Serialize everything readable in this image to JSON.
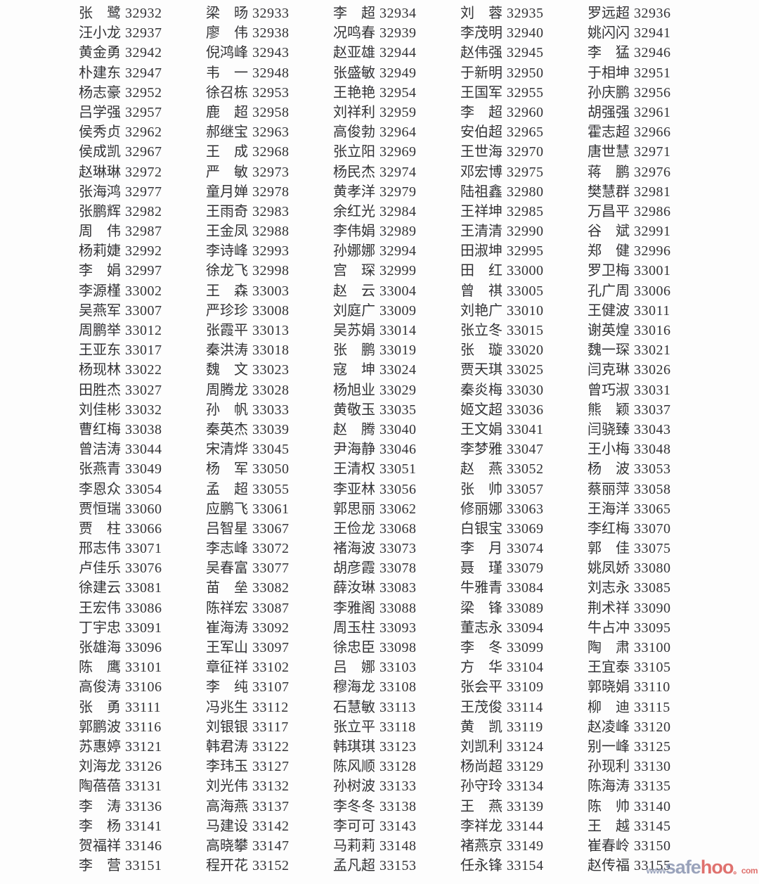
{
  "colors": {
    "text": "#333336",
    "background": "#fdfdfd",
    "watermark_blue": "#8590ad",
    "watermark_red": "#d9534f"
  },
  "watermark": {
    "www": "www",
    "safe": "safe",
    "hoo": "hoo",
    "com_suffix": "。com"
  },
  "roster": {
    "columns": 5,
    "number_range": "32932-33155",
    "entries": [
      [
        "张鹭",
        "32932"
      ],
      [
        "梁旸",
        "32933"
      ],
      [
        "李超",
        "32934"
      ],
      [
        "刘蓉",
        "32935"
      ],
      [
        "罗远超",
        "32936"
      ],
      [
        "汪小龙",
        "32937"
      ],
      [
        "廖伟",
        "32938"
      ],
      [
        "况鸣春",
        "32939"
      ],
      [
        "李茂明",
        "32940"
      ],
      [
        "姚闪闪",
        "32941"
      ],
      [
        "黄金勇",
        "32942"
      ],
      [
        "倪鸿峰",
        "32943"
      ],
      [
        "赵亚雄",
        "32944"
      ],
      [
        "赵伟强",
        "32945"
      ],
      [
        "李猛",
        "32946"
      ],
      [
        "朴建东",
        "32947"
      ],
      [
        "韦一",
        "32948"
      ],
      [
        "张盛敏",
        "32949"
      ],
      [
        "于新明",
        "32950"
      ],
      [
        "于相坤",
        "32951"
      ],
      [
        "杨志豪",
        "32952"
      ],
      [
        "徐召栋",
        "32953"
      ],
      [
        "王艳艳",
        "32954"
      ],
      [
        "王国军",
        "32955"
      ],
      [
        "孙庆鹏",
        "32956"
      ],
      [
        "吕学强",
        "32957"
      ],
      [
        "鹿超",
        "32958"
      ],
      [
        "刘祥利",
        "32959"
      ],
      [
        "李超",
        "32960"
      ],
      [
        "胡强强",
        "32961"
      ],
      [
        "侯秀贞",
        "32962"
      ],
      [
        "郝继宝",
        "32963"
      ],
      [
        "高俊勃",
        "32964"
      ],
      [
        "安伯超",
        "32965"
      ],
      [
        "霍志超",
        "32966"
      ],
      [
        "侯成凯",
        "32967"
      ],
      [
        "王成",
        "32968"
      ],
      [
        "张立阳",
        "32969"
      ],
      [
        "王世海",
        "32970"
      ],
      [
        "唐世慧",
        "32971"
      ],
      [
        "赵琳琳",
        "32972"
      ],
      [
        "严敏",
        "32973"
      ],
      [
        "杨民杰",
        "32974"
      ],
      [
        "邓宏博",
        "32975"
      ],
      [
        "蒋鹏",
        "32976"
      ],
      [
        "张海鸿",
        "32977"
      ],
      [
        "童月婵",
        "32978"
      ],
      [
        "黄孝洋",
        "32979"
      ],
      [
        "陆祖鑫",
        "32980"
      ],
      [
        "樊慧群",
        "32981"
      ],
      [
        "张鹏辉",
        "32982"
      ],
      [
        "王雨奇",
        "32983"
      ],
      [
        "余红光",
        "32984"
      ],
      [
        "王祥坤",
        "32985"
      ],
      [
        "万昌平",
        "32986"
      ],
      [
        "周伟",
        "32987"
      ],
      [
        "王金凤",
        "32988"
      ],
      [
        "李伟娟",
        "32989"
      ],
      [
        "王清清",
        "32990"
      ],
      [
        "谷斌",
        "32991"
      ],
      [
        "杨莉婕",
        "32992"
      ],
      [
        "李诗峰",
        "32993"
      ],
      [
        "孙娜娜",
        "32994"
      ],
      [
        "田淑坤",
        "32995"
      ],
      [
        "郑健",
        "32996"
      ],
      [
        "李娟",
        "32997"
      ],
      [
        "徐龙飞",
        "32998"
      ],
      [
        "宫琛",
        "32999"
      ],
      [
        "田红",
        "33000"
      ],
      [
        "罗卫梅",
        "33001"
      ],
      [
        "李源槿",
        "33002"
      ],
      [
        "王森",
        "33003"
      ],
      [
        "赵云",
        "33004"
      ],
      [
        "曾祺",
        "33005"
      ],
      [
        "孔广周",
        "33006"
      ],
      [
        "吴燕军",
        "33007"
      ],
      [
        "严珍珍",
        "33008"
      ],
      [
        "刘庭广",
        "33009"
      ],
      [
        "刘艳广",
        "33010"
      ],
      [
        "王健波",
        "33011"
      ],
      [
        "周鹏举",
        "33012"
      ],
      [
        "张霞平",
        "33013"
      ],
      [
        "吴苏娟",
        "33014"
      ],
      [
        "张立冬",
        "33015"
      ],
      [
        "谢英煌",
        "33016"
      ],
      [
        "王亚东",
        "33017"
      ],
      [
        "秦洪涛",
        "33018"
      ],
      [
        "张鹏",
        "33019"
      ],
      [
        "张璇",
        "33020"
      ],
      [
        "魏一琛",
        "33021"
      ],
      [
        "杨现林",
        "33022"
      ],
      [
        "魏文",
        "33023"
      ],
      [
        "寇坤",
        "33024"
      ],
      [
        "贾天琪",
        "33025"
      ],
      [
        "闫克琳",
        "33026"
      ],
      [
        "田胜杰",
        "33027"
      ],
      [
        "周腾龙",
        "33028"
      ],
      [
        "杨旭业",
        "33029"
      ],
      [
        "秦炎梅",
        "33030"
      ],
      [
        "曾巧淑",
        "33031"
      ],
      [
        "刘佳彬",
        "33032"
      ],
      [
        "孙帆",
        "33033"
      ],
      [
        "黄敬玉",
        "33035"
      ],
      [
        "姬文超",
        "33036"
      ],
      [
        "熊颖",
        "33037"
      ],
      [
        "曹红梅",
        "33038"
      ],
      [
        "秦英杰",
        "33039"
      ],
      [
        "赵腾",
        "33040"
      ],
      [
        "王文娟",
        "33041"
      ],
      [
        "闫骁臻",
        "33043"
      ],
      [
        "曾洁涛",
        "33044"
      ],
      [
        "宋清烨",
        "33045"
      ],
      [
        "尹海静",
        "33046"
      ],
      [
        "李梦雅",
        "33047"
      ],
      [
        "王小梅",
        "33048"
      ],
      [
        "张燕青",
        "33049"
      ],
      [
        "杨军",
        "33050"
      ],
      [
        "王清权",
        "33051"
      ],
      [
        "赵燕",
        "33052"
      ],
      [
        "杨波",
        "33053"
      ],
      [
        "李恩众",
        "33054"
      ],
      [
        "孟超",
        "33055"
      ],
      [
        "李亚林",
        "33056"
      ],
      [
        "张帅",
        "33057"
      ],
      [
        "蔡丽萍",
        "33058"
      ],
      [
        "贾恒瑞",
        "33060"
      ],
      [
        "应鹏飞",
        "33061"
      ],
      [
        "郭思丽",
        "33062"
      ],
      [
        "修丽娜",
        "33063"
      ],
      [
        "王海洋",
        "33065"
      ],
      [
        "贾柱",
        "33066"
      ],
      [
        "吕智星",
        "33067"
      ],
      [
        "王俭龙",
        "33068"
      ],
      [
        "白银宝",
        "33069"
      ],
      [
        "李红梅",
        "33070"
      ],
      [
        "邢志伟",
        "33071"
      ],
      [
        "李志峰",
        "33072"
      ],
      [
        "褚海波",
        "33073"
      ],
      [
        "李月",
        "33074"
      ],
      [
        "郭佳",
        "33075"
      ],
      [
        "卢佳乐",
        "33076"
      ],
      [
        "吴春富",
        "33077"
      ],
      [
        "胡彦霞",
        "33078"
      ],
      [
        "聂瑾",
        "33079"
      ],
      [
        "姚凤娇",
        "33080"
      ],
      [
        "徐建云",
        "33081"
      ],
      [
        "苗垒",
        "33082"
      ],
      [
        "薛汝琳",
        "33083"
      ],
      [
        "牛雅青",
        "33084"
      ],
      [
        "刘志永",
        "33085"
      ],
      [
        "王宏伟",
        "33086"
      ],
      [
        "陈祥宏",
        "33087"
      ],
      [
        "李雅阁",
        "33088"
      ],
      [
        "梁锋",
        "33089"
      ],
      [
        "荆术祥",
        "33090"
      ],
      [
        "丁宇忠",
        "33091"
      ],
      [
        "崔海涛",
        "33092"
      ],
      [
        "周玉柱",
        "33093"
      ],
      [
        "董志永",
        "33094"
      ],
      [
        "牛占冲",
        "33095"
      ],
      [
        "张雄海",
        "33096"
      ],
      [
        "王军山",
        "33097"
      ],
      [
        "徐忠臣",
        "33098"
      ],
      [
        "李冬",
        "33099"
      ],
      [
        "陶肃",
        "33100"
      ],
      [
        "陈鹰",
        "33101"
      ],
      [
        "章征祥",
        "33102"
      ],
      [
        "吕娜",
        "33103"
      ],
      [
        "方华",
        "33104"
      ],
      [
        "王宜泰",
        "33105"
      ],
      [
        "高俊涛",
        "33106"
      ],
      [
        "李纯",
        "33107"
      ],
      [
        "穆海龙",
        "33108"
      ],
      [
        "张会平",
        "33109"
      ],
      [
        "郭晓娟",
        "33110"
      ],
      [
        "张勇",
        "33111"
      ],
      [
        "冯兆生",
        "33112"
      ],
      [
        "石慧敏",
        "33113"
      ],
      [
        "王茂俊",
        "33114"
      ],
      [
        "柳迪",
        "33115"
      ],
      [
        "郭鹏波",
        "33116"
      ],
      [
        "刘银银",
        "33117"
      ],
      [
        "张立平",
        "33118"
      ],
      [
        "黄凯",
        "33119"
      ],
      [
        "赵凌峰",
        "33120"
      ],
      [
        "苏惠婷",
        "33121"
      ],
      [
        "韩君涛",
        "33122"
      ],
      [
        "韩琪琪",
        "33123"
      ],
      [
        "刘凯利",
        "33124"
      ],
      [
        "别一峰",
        "33125"
      ],
      [
        "刘海龙",
        "33126"
      ],
      [
        "李玮玉",
        "33127"
      ],
      [
        "陈风顺",
        "33128"
      ],
      [
        "杨尚超",
        "33129"
      ],
      [
        "孙现利",
        "33130"
      ],
      [
        "陶蓓蓓",
        "33131"
      ],
      [
        "刘光伟",
        "33132"
      ],
      [
        "孙树波",
        "33133"
      ],
      [
        "孙守玲",
        "33134"
      ],
      [
        "陈海涛",
        "33135"
      ],
      [
        "李涛",
        "33136"
      ],
      [
        "高海燕",
        "33137"
      ],
      [
        "李冬冬",
        "33138"
      ],
      [
        "王燕",
        "33139"
      ],
      [
        "陈帅",
        "33140"
      ],
      [
        "李杨",
        "33141"
      ],
      [
        "马建设",
        "33142"
      ],
      [
        "李可可",
        "33143"
      ],
      [
        "李祥龙",
        "33144"
      ],
      [
        "王越",
        "33145"
      ],
      [
        "贺福祥",
        "33146"
      ],
      [
        "高晓攀",
        "33147"
      ],
      [
        "马莉莉",
        "33148"
      ],
      [
        "褚燕京",
        "33149"
      ],
      [
        "崔春岭",
        "33150"
      ],
      [
        "李营",
        "33151"
      ],
      [
        "程开花",
        "33152"
      ],
      [
        "孟凡超",
        "33153"
      ],
      [
        "任永锋",
        "33154"
      ],
      [
        "赵传福",
        "33155"
      ]
    ]
  }
}
